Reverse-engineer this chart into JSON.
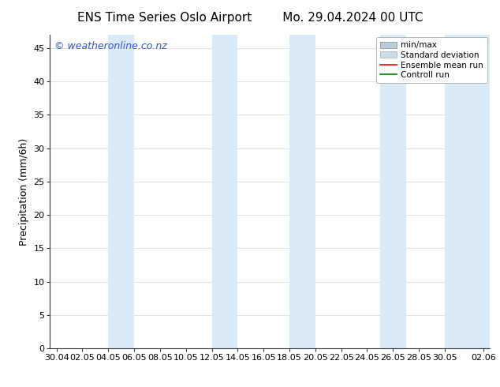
{
  "title_left": "ENS Time Series Oslo Airport",
  "title_right": "Mo. 29.04.2024 00 UTC",
  "ylabel": "Precipitation (mm/6h)",
  "ylim": [
    0,
    47
  ],
  "yticks": [
    0,
    5,
    10,
    15,
    20,
    25,
    30,
    35,
    40,
    45
  ],
  "xtick_labels": [
    "30.04",
    "02.05",
    "04.05",
    "06.05",
    "08.05",
    "10.05",
    "12.05",
    "14.05",
    "16.05",
    "18.05",
    "20.05",
    "22.05",
    "24.05",
    "26.05",
    "28.05",
    "30.05",
    "02.06"
  ],
  "xtick_positions": [
    0,
    2,
    4,
    6,
    8,
    10,
    12,
    14,
    16,
    18,
    20,
    22,
    24,
    26,
    28,
    30,
    33
  ],
  "xlim": [
    -0.5,
    33.5
  ],
  "shaded_band_color": "#daeaf7",
  "shaded_bands": [
    [
      4,
      6
    ],
    [
      12,
      14
    ],
    [
      18,
      20
    ],
    [
      25,
      27
    ],
    [
      30,
      33.5
    ]
  ],
  "legend_labels": [
    "min/max",
    "Standard deviation",
    "Ensemble mean run",
    "Controll run"
  ],
  "minmax_color": "#b8cdd8",
  "std_color": "#ccdde8",
  "ens_color": "#ff0000",
  "ctrl_color": "#008000",
  "watermark": "© weatheronline.co.nz",
  "watermark_color": "#3355cc",
  "background_color": "#ffffff",
  "grid_color": "#dddddd",
  "title_fontsize": 11,
  "label_fontsize": 9,
  "tick_fontsize": 8,
  "watermark_fontsize": 9,
  "legend_fontsize": 7.5
}
